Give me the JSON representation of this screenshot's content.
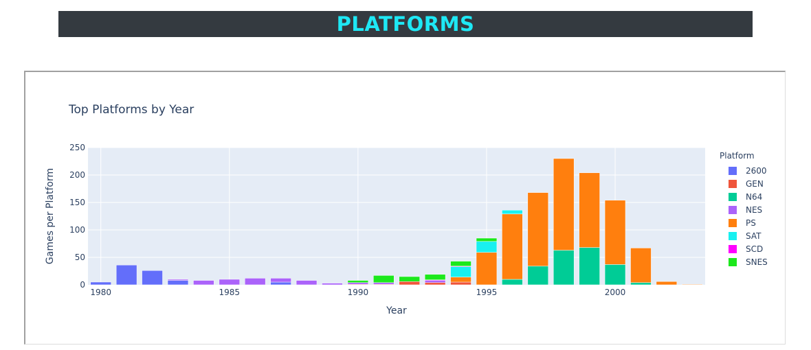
{
  "page": {
    "banner_title": "PLATFORMS"
  },
  "colors": {
    "banner_bg": "#343a40",
    "banner_text": "#1ee8f5",
    "plot_bg": "#e5ecf6",
    "2600": "#636efa",
    "GEN": "#ef553b",
    "N64": "#00cc96",
    "NES": "#ab63fa",
    "PS": "#ff7f0e",
    "SAT": "#19f0f0",
    "SCD": "#ff00ff",
    "SNES": "#1ce81c"
  },
  "chart_data": {
    "type": "bar",
    "barmode": "stack",
    "title": "Top Platforms by Year",
    "xlabel": "Year",
    "ylabel": "Games per Platform",
    "legend_title": "Platform",
    "legend_position": "right",
    "grid": true,
    "ylim": [
      0,
      250
    ],
    "xlim": [
      1979.5,
      2003.5
    ],
    "y_ticks": [
      0,
      50,
      100,
      150,
      200,
      250
    ],
    "x_ticks": [
      1980,
      1985,
      1990,
      1995,
      2000
    ],
    "categories": [
      1980,
      1981,
      1982,
      1983,
      1984,
      1985,
      1986,
      1987,
      1988,
      1989,
      1990,
      1991,
      1992,
      1993,
      1994,
      1995,
      1996,
      1997,
      1998,
      1999,
      2000,
      2001,
      2002,
      2003
    ],
    "series": [
      {
        "name": "2600",
        "values": [
          5,
          36,
          26,
          8,
          0,
          0,
          0,
          5,
          0,
          0,
          0,
          0,
          0,
          0,
          0,
          0,
          0,
          0,
          0,
          0,
          0,
          0,
          0,
          0
        ]
      },
      {
        "name": "GEN",
        "values": [
          0,
          0,
          0,
          0,
          0,
          0,
          0,
          0,
          0,
          0,
          1,
          1,
          6,
          4,
          5,
          0,
          0,
          0,
          0,
          0,
          0,
          0,
          0,
          0
        ]
      },
      {
        "name": "N64",
        "values": [
          0,
          0,
          0,
          0,
          0,
          0,
          0,
          0,
          0,
          0,
          0,
          0,
          0,
          0,
          0,
          0,
          10,
          34,
          63,
          68,
          37,
          4,
          0,
          0
        ]
      },
      {
        "name": "NES",
        "values": [
          0,
          0,
          0,
          2,
          8,
          10,
          12,
          7,
          8,
          3,
          3,
          3,
          0,
          4,
          0,
          0,
          0,
          0,
          0,
          0,
          0,
          0,
          0,
          0
        ]
      },
      {
        "name": "PS",
        "values": [
          0,
          0,
          0,
          0,
          0,
          0,
          0,
          0,
          0,
          0,
          0,
          0,
          0,
          0,
          9,
          59,
          119,
          134,
          167,
          136,
          117,
          63,
          6,
          1
        ]
      },
      {
        "name": "SAT",
        "values": [
          0,
          0,
          0,
          0,
          0,
          0,
          0,
          0,
          0,
          0,
          0,
          0,
          0,
          0,
          19,
          20,
          7,
          0,
          0,
          0,
          0,
          0,
          0,
          0
        ]
      },
      {
        "name": "SCD",
        "values": [
          0,
          0,
          0,
          0,
          0,
          0,
          0,
          0,
          0,
          0,
          0,
          0,
          0,
          1,
          1,
          0,
          0,
          0,
          0,
          0,
          0,
          0,
          0,
          0
        ]
      },
      {
        "name": "SNES",
        "values": [
          0,
          0,
          0,
          0,
          0,
          0,
          0,
          0,
          0,
          0,
          4,
          13,
          9,
          10,
          9,
          6,
          0,
          0,
          0,
          0,
          0,
          0,
          0,
          0
        ]
      }
    ]
  }
}
